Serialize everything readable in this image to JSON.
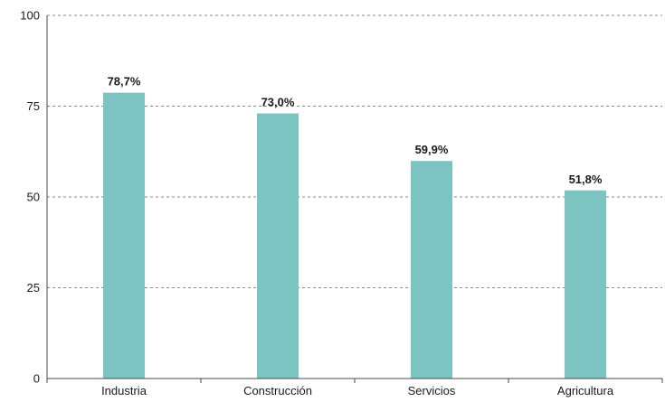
{
  "chart_data": {
    "type": "bar",
    "categories": [
      "Industria",
      "Construcción",
      "Servicios",
      "Agricultura"
    ],
    "values": [
      78.7,
      73.0,
      59.9,
      51.8
    ],
    "data_labels": [
      "78,7%",
      "73,0%",
      "59,9%",
      "51,8%"
    ],
    "title": "",
    "xlabel": "",
    "ylabel": "",
    "ylim": [
      0,
      100
    ],
    "yticks": [
      0,
      25,
      50,
      75,
      100
    ],
    "ytick_labels": [
      "0",
      "25",
      "50",
      "75",
      "100"
    ],
    "grid": true,
    "legend": "none",
    "bar_color": "#7cc4c2"
  }
}
